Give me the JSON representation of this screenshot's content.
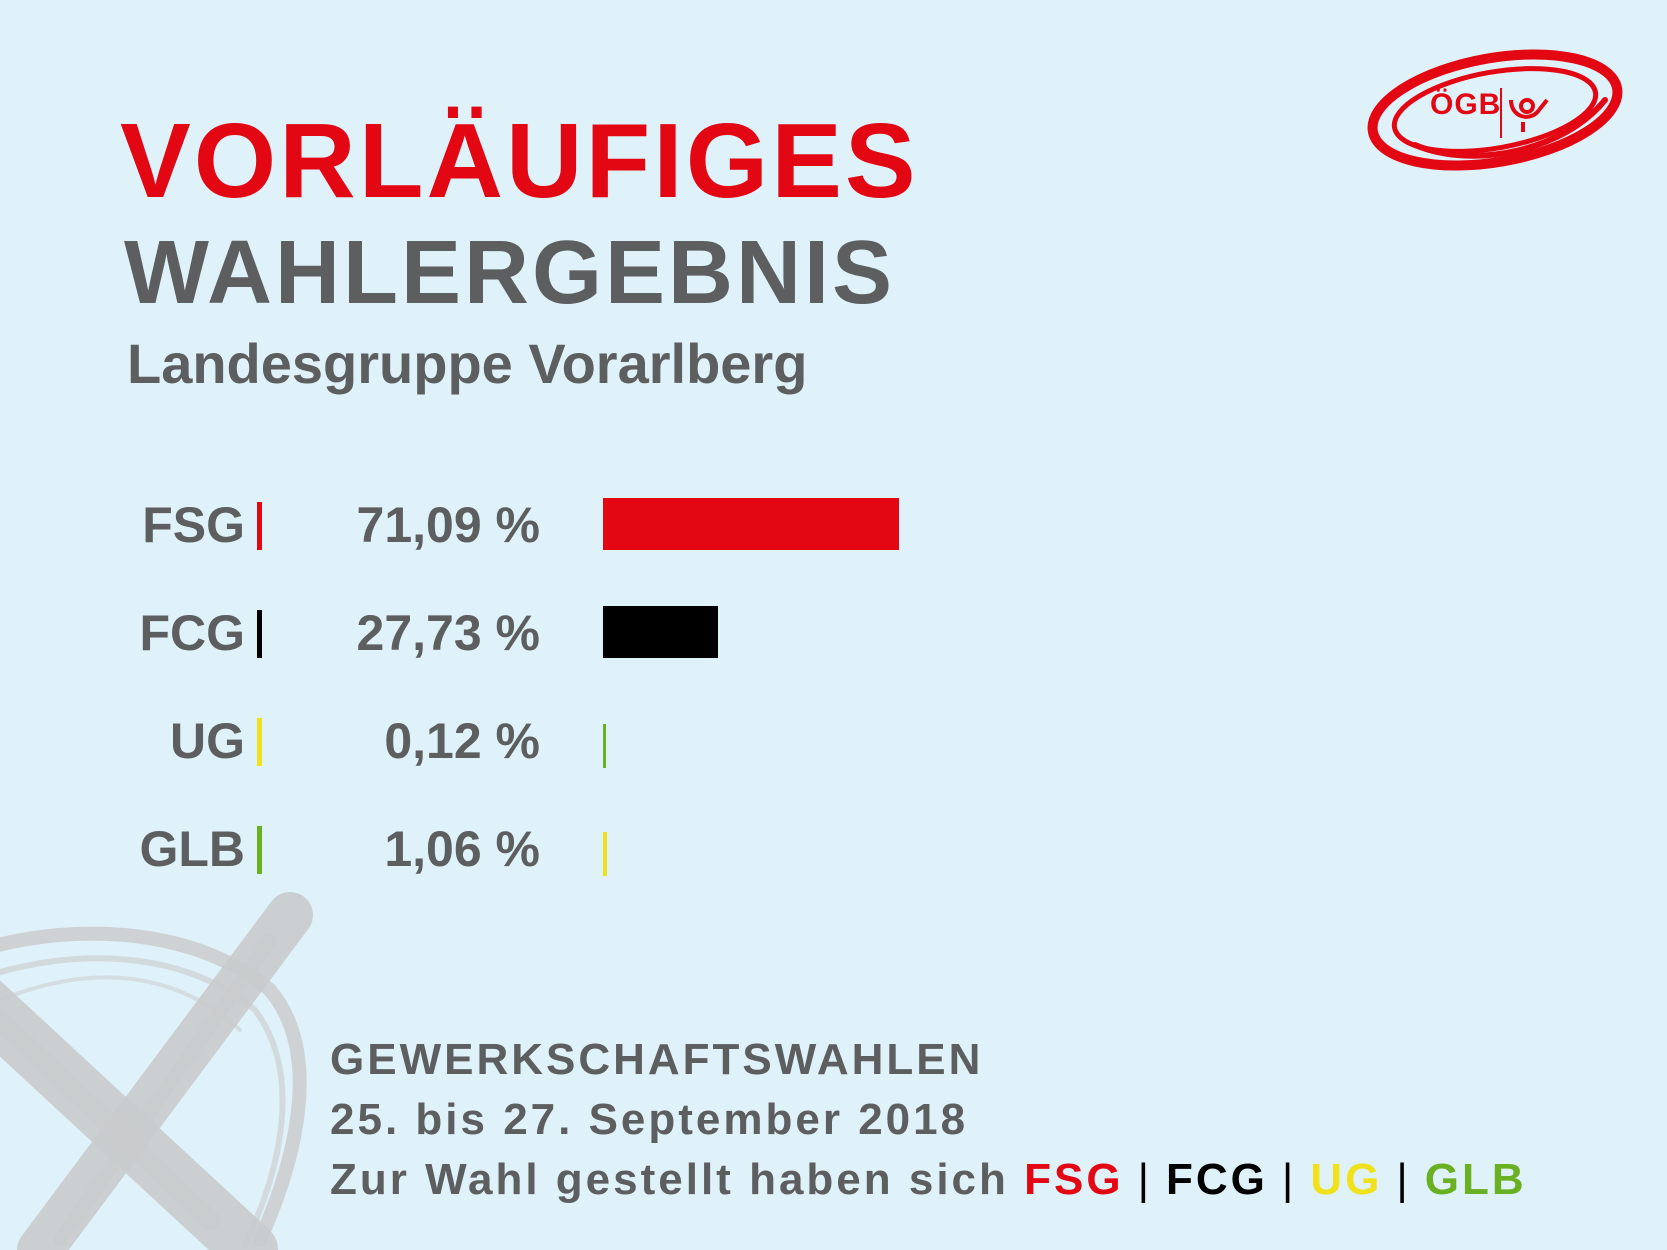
{
  "header": {
    "title_line1": "VORLÄUFIGES",
    "title_line2": "WAHLERGEBNIS",
    "subtitle": "Landesgruppe Vorarlberg"
  },
  "logo": {
    "text": "ÖGB",
    "icon": "post-horn-icon"
  },
  "colors": {
    "red": "#e30613",
    "black": "#000000",
    "yellow": "#f0e11a",
    "green": "#6ab023",
    "gray_text": "#5c5e5f",
    "background": "#dff1f9"
  },
  "chart_data": {
    "type": "bar",
    "orientation": "horizontal",
    "categories": [
      "FSG",
      "FCG",
      "UG",
      "GLB"
    ],
    "values": [
      71.09,
      27.73,
      0.12,
      1.06
    ],
    "value_labels": [
      "71,09 %",
      "27,73 %",
      "0,12 %",
      "1,06 %"
    ],
    "separator_colors": [
      "#e30613",
      "#000000",
      "#f0e11a",
      "#6ab023"
    ],
    "bar_colors": [
      "#e30613",
      "#000000",
      "#6ab023",
      "#f0e11a"
    ],
    "xlim": [
      0,
      100
    ],
    "grid": false
  },
  "footer": {
    "line1": "GEWERKSCHAFTSWAHLEN",
    "line2": "25. bis 27. September 2018",
    "line3_prefix": "Zur Wahl gestellt haben sich",
    "parties": [
      {
        "label": "FSG",
        "color": "#e30613"
      },
      {
        "label": "FCG",
        "color": "#000000"
      },
      {
        "label": "UG",
        "color": "#f0e11a"
      },
      {
        "label": "GLB",
        "color": "#6ab023"
      }
    ],
    "separator": "|"
  }
}
